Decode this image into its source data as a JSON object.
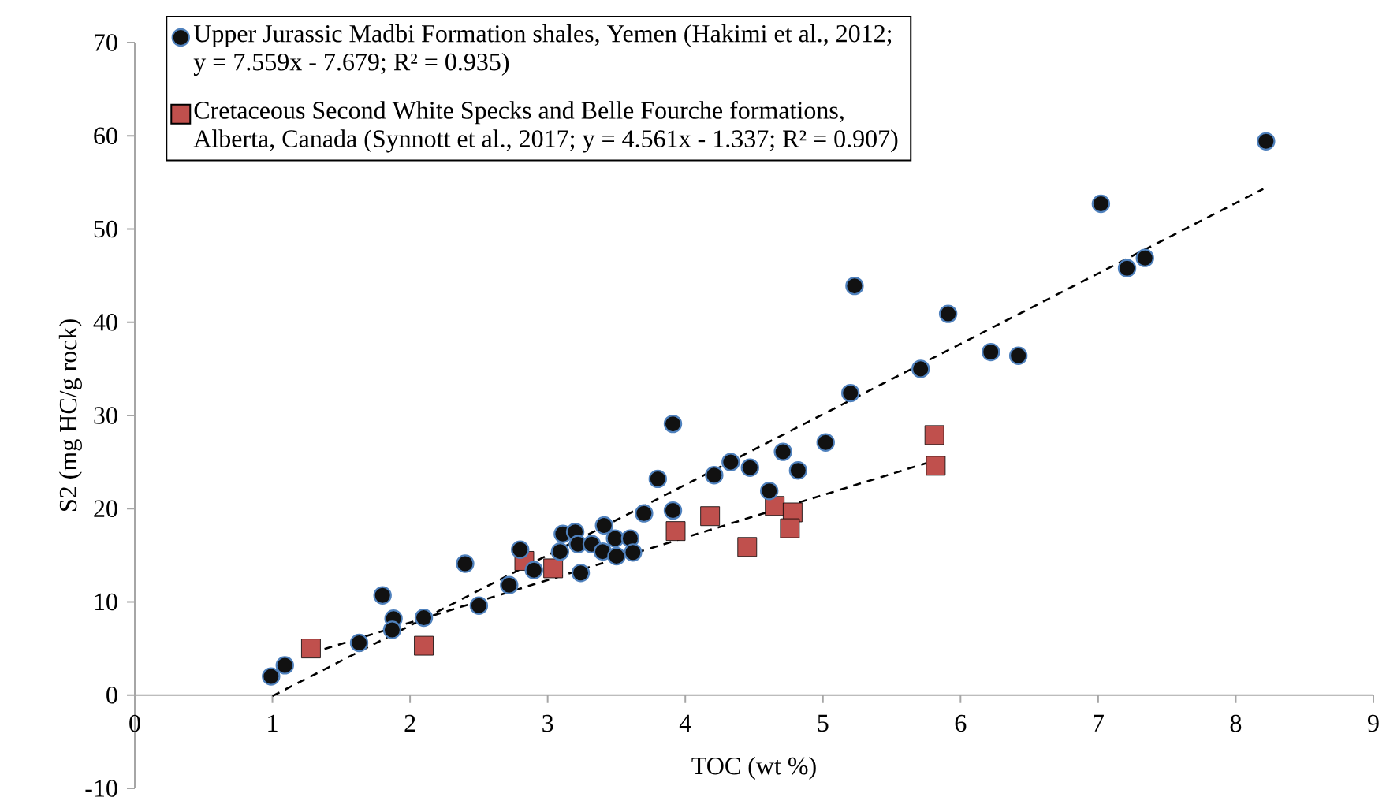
{
  "chart_data": {
    "type": "scatter",
    "xlabel": "TOC (wt %)",
    "ylabel": "S2 (mg HC/g rock)",
    "xlim": [
      0,
      9
    ],
    "ylim": [
      -10,
      70
    ],
    "xticks": [
      0,
      1,
      2,
      3,
      4,
      5,
      6,
      7,
      8,
      9
    ],
    "yticks": [
      -10,
      0,
      10,
      20,
      30,
      40,
      50,
      60,
      70
    ],
    "grid": false,
    "legend": "top left",
    "series": [
      {
        "name": "Upper Jurassic Madbi Formation shales, Yemen (Hakimi et al., 2012; y = 7.559x - 7.679; R² = 0.935)",
        "color": "#111111",
        "marker": "circle",
        "x": [
          0.99,
          1.09,
          1.63,
          1.8,
          1.88,
          1.87,
          2.1,
          2.4,
          2.5,
          2.72,
          2.8,
          2.9,
          3.09,
          3.11,
          3.2,
          3.22,
          3.24,
          3.32,
          3.4,
          3.41,
          3.49,
          3.5,
          3.6,
          3.62,
          3.7,
          3.8,
          3.91,
          3.91,
          4.21,
          4.33,
          4.47,
          4.61,
          4.71,
          4.82,
          5.02,
          5.2,
          5.23,
          5.71,
          5.91,
          6.22,
          6.42,
          7.02,
          7.21,
          7.34,
          8.22
        ],
        "values": [
          2.0,
          3.2,
          5.6,
          10.7,
          8.2,
          7.0,
          8.3,
          14.1,
          9.6,
          11.8,
          15.6,
          13.4,
          15.4,
          17.3,
          17.5,
          16.2,
          13.1,
          16.2,
          15.4,
          18.2,
          16.8,
          14.9,
          16.8,
          15.3,
          19.5,
          23.2,
          29.1,
          19.8,
          23.6,
          25.0,
          24.4,
          21.9,
          26.1,
          24.1,
          27.1,
          32.4,
          43.9,
          35.0,
          40.9,
          36.8,
          36.4,
          52.7,
          45.8,
          46.9,
          59.4
        ]
      },
      {
        "name": "Cretaceous Second White Specks and Belle Fourche formations, Alberta, Canada (Synnott et al., 2017; y = 4.561x - 1.337; R² = 0.907)",
        "color": "#c0504d",
        "marker": "square",
        "x": [
          1.28,
          2.1,
          2.83,
          3.04,
          3.93,
          4.18,
          4.45,
          4.65,
          4.78,
          4.76,
          5.81,
          5.82
        ],
        "values": [
          5.0,
          5.3,
          14.4,
          13.6,
          17.6,
          19.2,
          15.9,
          20.3,
          19.6,
          17.9,
          27.9,
          24.6
        ]
      },
      {
        "type": "line",
        "color": "#000000",
        "marker": "none",
        "line_style": "dashed",
        "x": [
          1.0,
          8.2
        ],
        "values": [
          -0.1,
          54.3
        ]
      },
      {
        "type": "line",
        "color": "#000000",
        "marker": "none",
        "line_style": "dashed",
        "x": [
          1.28,
          5.82
        ],
        "values": [
          4.5,
          25.2
        ]
      }
    ]
  }
}
